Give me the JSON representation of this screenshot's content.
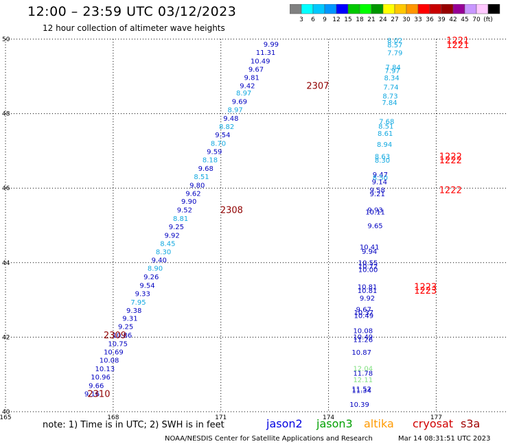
{
  "header": {
    "title": "12:00 – 23:59 UTC 03/12/2023",
    "subtitle": "12 hour collection of altimeter wave heights"
  },
  "colorbar": {
    "colors": [
      "#808080",
      "#00ffff",
      "#00c8ff",
      "#0096ff",
      "#0000ff",
      "#00c800",
      "#00ff00",
      "#009600",
      "#ffff00",
      "#ffc800",
      "#ff9600",
      "#ff0000",
      "#c80000",
      "#960000",
      "#960096",
      "#c896ff",
      "#ffc8ff",
      "#000000"
    ],
    "labels": [
      "3",
      "6",
      "9",
      "12",
      "15",
      "18",
      "21",
      "24",
      "27",
      "30",
      "33",
      "36",
      "39",
      "42",
      "45",
      "70",
      "(ft)"
    ]
  },
  "legend": {
    "note": "note:  1) Time is in UTC;  2) SWH is in feet",
    "missions": [
      {
        "name": "jason2",
        "color": "#0000e0"
      },
      {
        "name": "jason3",
        "color": "#00a000"
      },
      {
        "name": "altika",
        "color": "#ff9a00"
      },
      {
        "name": "cryosat",
        "color": "#d00000"
      },
      {
        "name": "s3a",
        "color": "#a00000"
      }
    ]
  },
  "footer": {
    "credit": "NOAA/NESDIS Center for Satellite Applications and Research",
    "timestamp": "Mar 14 08:31:51 UTC 2023"
  },
  "chart_data": {
    "type": "scatter",
    "xlim": [
      165,
      179
    ],
    "ylim": [
      40,
      50
    ],
    "x_ticks": [
      "165",
      "168",
      "171",
      "174",
      "177"
    ],
    "y_ticks": [
      "40",
      "42",
      "44",
      "46",
      "48",
      "50"
    ],
    "grid": true,
    "series": [
      {
        "name": "track-a",
        "points": [
          {
            "x": 172.4,
            "y": 49.87,
            "label": "9.99",
            "color": "#0000c0"
          },
          {
            "x": 172.25,
            "y": 49.65,
            "label": "11.31",
            "color": "#0000c0"
          },
          {
            "x": 172.1,
            "y": 49.42,
            "label": "10.49",
            "color": "#0000c0"
          },
          {
            "x": 171.98,
            "y": 49.2,
            "label": "9.67",
            "color": "#0000c0"
          },
          {
            "x": 171.86,
            "y": 48.98,
            "label": "9.81",
            "color": "#0000c0"
          },
          {
            "x": 171.74,
            "y": 48.76,
            "label": "9.42",
            "color": "#0000c0"
          },
          {
            "x": 171.64,
            "y": 48.56,
            "label": "8.97",
            "color": "#10a8e0"
          },
          {
            "x": 171.52,
            "y": 48.33,
            "label": "9.69",
            "color": "#0000c0"
          },
          {
            "x": 171.4,
            "y": 48.11,
            "label": "8.97",
            "color": "#10a8e0"
          },
          {
            "x": 171.28,
            "y": 47.88,
            "label": "9.48",
            "color": "#0000c0"
          },
          {
            "x": 171.16,
            "y": 47.66,
            "label": "8.82",
            "color": "#10a8e0"
          },
          {
            "x": 171.05,
            "y": 47.44,
            "label": "9.54",
            "color": "#0000c0"
          },
          {
            "x": 170.93,
            "y": 47.21,
            "label": "8.70",
            "color": "#10a8e0"
          },
          {
            "x": 170.82,
            "y": 46.99,
            "label": "9.59",
            "color": "#0000c0"
          },
          {
            "x": 170.7,
            "y": 46.77,
            "label": "8.18",
            "color": "#10a8e0"
          },
          {
            "x": 170.58,
            "y": 46.54,
            "label": "9.68",
            "color": "#0000c0"
          },
          {
            "x": 170.46,
            "y": 46.32,
            "label": "8.51",
            "color": "#10a8e0"
          },
          {
            "x": 170.34,
            "y": 46.09,
            "label": "9.80",
            "color": "#0000c0"
          },
          {
            "x": 170.23,
            "y": 45.87,
            "label": "9.62",
            "color": "#0000c0"
          },
          {
            "x": 170.11,
            "y": 45.65,
            "label": "9.90",
            "color": "#0000c0"
          },
          {
            "x": 169.99,
            "y": 45.42,
            "label": "9.52",
            "color": "#0000c0"
          },
          {
            "x": 169.88,
            "y": 45.19,
            "label": "8.81",
            "color": "#10a8e0"
          },
          {
            "x": 169.76,
            "y": 44.97,
            "label": "9.25",
            "color": "#0000c0"
          },
          {
            "x": 169.64,
            "y": 44.74,
            "label": "9.92",
            "color": "#0000c0"
          },
          {
            "x": 169.52,
            "y": 44.52,
            "label": "8.45",
            "color": "#10a8e0"
          },
          {
            "x": 169.4,
            "y": 44.3,
            "label": "8.30",
            "color": "#10a8e0"
          },
          {
            "x": 169.28,
            "y": 44.08,
            "label": "9.40",
            "color": "#0000c0"
          },
          {
            "x": 169.17,
            "y": 43.86,
            "label": "8.90",
            "color": "#10a8e0"
          },
          {
            "x": 169.06,
            "y": 43.63,
            "label": "9.26",
            "color": "#0000c0"
          },
          {
            "x": 168.95,
            "y": 43.4,
            "label": "9.54",
            "color": "#0000c0"
          },
          {
            "x": 168.82,
            "y": 43.18,
            "label": "9.33",
            "color": "#0000c0"
          },
          {
            "x": 168.7,
            "y": 42.95,
            "label": "7.95",
            "color": "#10a8e0"
          },
          {
            "x": 168.58,
            "y": 42.73,
            "label": "9.38",
            "color": "#0000c0"
          },
          {
            "x": 168.47,
            "y": 42.51,
            "label": "9.31",
            "color": "#0000c0"
          },
          {
            "x": 168.35,
            "y": 42.29,
            "label": "9.25",
            "color": "#0000c0"
          },
          {
            "x": 168.25,
            "y": 42.06,
            "label": "10.86",
            "color": "#0000c0"
          },
          {
            "x": 168.13,
            "y": 41.83,
            "label": "10.75",
            "color": "#0000c0"
          },
          {
            "x": 168.01,
            "y": 41.61,
            "label": "10.69",
            "color": "#0000c0"
          },
          {
            "x": 167.89,
            "y": 41.39,
            "label": "10.08",
            "color": "#0000c0"
          },
          {
            "x": 167.77,
            "y": 41.16,
            "label": "10.13",
            "color": "#0000c0"
          },
          {
            "x": 167.65,
            "y": 40.94,
            "label": "10.96",
            "color": "#0000c0"
          },
          {
            "x": 167.53,
            "y": 40.71,
            "label": "9.66",
            "color": "#0000c0"
          },
          {
            "x": 167.41,
            "y": 40.49,
            "label": "9.16",
            "color": "#0000c0"
          }
        ]
      },
      {
        "name": "track-b",
        "points": [
          {
            "x": 175.85,
            "y": 49.97,
            "label": "8.02",
            "color": "#10a8e0"
          },
          {
            "x": 175.85,
            "y": 49.85,
            "label": "8.57",
            "color": "#10a8e0"
          },
          {
            "x": 175.85,
            "y": 49.64,
            "label": "7.79",
            "color": "#10a8e0"
          },
          {
            "x": 175.8,
            "y": 49.25,
            "label": "7.84",
            "color": "#10a8e0"
          },
          {
            "x": 175.78,
            "y": 49.16,
            "label": "7.97",
            "color": "#10a8e0"
          },
          {
            "x": 175.76,
            "y": 48.97,
            "label": "8.34",
            "color": "#10a8e0"
          },
          {
            "x": 175.74,
            "y": 48.72,
            "label": "7.74",
            "color": "#10a8e0"
          },
          {
            "x": 175.72,
            "y": 48.48,
            "label": "8.73",
            "color": "#10a8e0"
          },
          {
            "x": 175.7,
            "y": 48.31,
            "label": "7.84",
            "color": "#10a8e0"
          },
          {
            "x": 175.62,
            "y": 47.8,
            "label": "7.68",
            "color": "#10a8e0"
          },
          {
            "x": 175.6,
            "y": 47.67,
            "label": "8.51",
            "color": "#10a8e0"
          },
          {
            "x": 175.58,
            "y": 47.48,
            "label": "8.61",
            "color": "#10a8e0"
          },
          {
            "x": 175.56,
            "y": 47.18,
            "label": "8.94",
            "color": "#10a8e0"
          },
          {
            "x": 175.5,
            "y": 46.86,
            "label": "8.63",
            "color": "#10a8e0"
          },
          {
            "x": 175.5,
            "y": 46.76,
            "label": "8.30",
            "color": "#10a8e0"
          },
          {
            "x": 175.44,
            "y": 46.37,
            "label": "9.47",
            "color": "#0000c0"
          },
          {
            "x": 175.44,
            "y": 46.29,
            "label": "8.50",
            "color": "#10a8e0"
          },
          {
            "x": 175.42,
            "y": 46.18,
            "label": "9.14",
            "color": "#0000c0"
          },
          {
            "x": 175.36,
            "y": 45.96,
            "label": "9.58",
            "color": "#0000c0"
          },
          {
            "x": 175.36,
            "y": 45.86,
            "label": "9.21",
            "color": "#0000c0"
          },
          {
            "x": 175.3,
            "y": 45.42,
            "label": "9.93",
            "color": "#0000c0"
          },
          {
            "x": 175.3,
            "y": 45.37,
            "label": "10.11",
            "color": "#0000c0"
          },
          {
            "x": 175.3,
            "y": 45.0,
            "label": "9.65",
            "color": "#0000c0"
          },
          {
            "x": 175.14,
            "y": 44.43,
            "label": "10.41",
            "color": "#0000c0"
          },
          {
            "x": 175.14,
            "y": 44.31,
            "label": "9.94",
            "color": "#0000c0"
          },
          {
            "x": 175.1,
            "y": 44.01,
            "label": "10.55",
            "color": "#0000c0"
          },
          {
            "x": 175.1,
            "y": 43.91,
            "label": "10.72",
            "color": "#0000c0"
          },
          {
            "x": 175.1,
            "y": 43.82,
            "label": "10.00",
            "color": "#0000c0"
          },
          {
            "x": 175.08,
            "y": 43.36,
            "label": "10.81",
            "color": "#0000c0"
          },
          {
            "x": 175.08,
            "y": 43.26,
            "label": "10.81",
            "color": "#0000c0"
          },
          {
            "x": 175.08,
            "y": 43.06,
            "label": "9.92",
            "color": "#0000c0"
          },
          {
            "x": 174.98,
            "y": 42.75,
            "label": "9.67",
            "color": "#0000c0"
          },
          {
            "x": 174.98,
            "y": 42.67,
            "label": "10.37",
            "color": "#0000c0"
          },
          {
            "x": 174.98,
            "y": 42.59,
            "label": "10.49",
            "color": "#0000c0"
          },
          {
            "x": 174.96,
            "y": 42.18,
            "label": "10.08",
            "color": "#0000c0"
          },
          {
            "x": 174.96,
            "y": 42.02,
            "label": "10.49",
            "color": "#0000c0"
          },
          {
            "x": 174.96,
            "y": 41.94,
            "label": "11.26",
            "color": "#0000c0"
          },
          {
            "x": 174.92,
            "y": 41.6,
            "label": "10.87",
            "color": "#0000c0"
          },
          {
            "x": 174.96,
            "y": 41.17,
            "label": "12.04",
            "color": "#80e080"
          },
          {
            "x": 174.96,
            "y": 41.04,
            "label": "11.78",
            "color": "#0000c0"
          },
          {
            "x": 174.96,
            "y": 40.87,
            "label": "12.11",
            "color": "#80e080"
          },
          {
            "x": 174.92,
            "y": 40.62,
            "label": "11.52",
            "color": "#0000c0"
          },
          {
            "x": 174.92,
            "y": 40.58,
            "label": "11.34",
            "color": "#0000c0"
          },
          {
            "x": 174.86,
            "y": 40.2,
            "label": "10.39",
            "color": "#0000c0"
          }
        ]
      }
    ],
    "time_labels": [
      {
        "x": 173.7,
        "y": 48.76,
        "label": "2307",
        "color": "#900000"
      },
      {
        "x": 171.3,
        "y": 45.42,
        "label": "2308",
        "color": "#900000"
      },
      {
        "x": 168.05,
        "y": 42.06,
        "label": "2309",
        "color": "#900000"
      },
      {
        "x": 167.6,
        "y": 40.49,
        "label": "2310",
        "color": "#900000"
      },
      {
        "x": 177.6,
        "y": 49.97,
        "label": "1221",
        "color": "#ff0000"
      },
      {
        "x": 177.6,
        "y": 49.85,
        "label": "1221",
        "color": "#ff0000"
      },
      {
        "x": 177.4,
        "y": 46.86,
        "label": "1222",
        "color": "#ff0000"
      },
      {
        "x": 177.4,
        "y": 46.76,
        "label": "1222",
        "color": "#ff0000"
      },
      {
        "x": 177.4,
        "y": 45.96,
        "label": "1222",
        "color": "#ff0000"
      },
      {
        "x": 176.7,
        "y": 43.36,
        "label": "1223",
        "color": "#ff0000"
      },
      {
        "x": 176.7,
        "y": 43.26,
        "label": "1223",
        "color": "#ff0000"
      }
    ]
  }
}
